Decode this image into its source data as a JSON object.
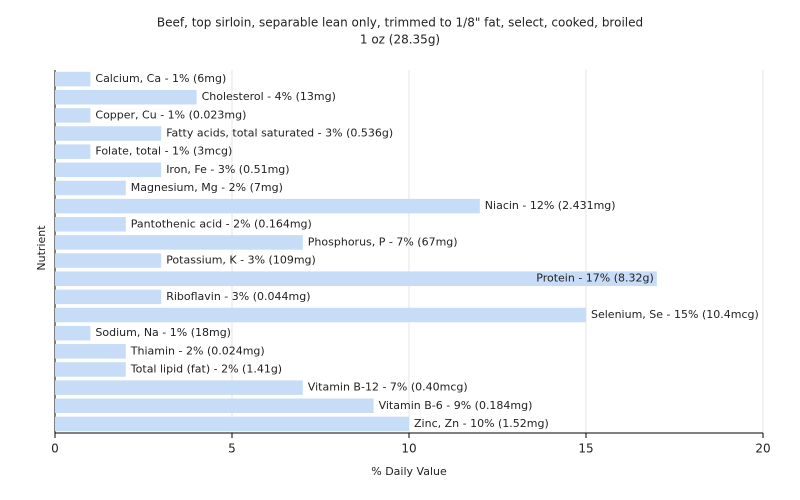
{
  "chart_data": {
    "type": "barh",
    "title": "Beef, top sirloin, separable lean only, trimmed to 1/8\" fat, select, cooked, broiled",
    "subtitle": "1 oz (28.35g)",
    "x_label": "% Daily Value",
    "y_label": "Nutrient",
    "values": [
      1,
      4,
      1,
      3,
      1,
      3,
      2,
      12,
      2,
      7,
      3,
      17,
      3,
      15,
      1,
      2,
      2,
      7,
      9,
      10
    ],
    "value_labels": [
      "Calcium, Ca - 1% (6mg)",
      "Cholesterol - 4% (13mg)",
      "Copper, Cu - 1% (0.023mg)",
      "Fatty acids, total saturated - 3% (0.536g)",
      "Folate, total - 1% (3mcg)",
      "Iron, Fe - 3% (0.51mg)",
      "Magnesium, Mg - 2% (7mg)",
      "Niacin - 12% (2.431mg)",
      "Pantothenic acid - 2% (0.164mg)",
      "Phosphorus, P - 7% (67mg)",
      "Potassium, K - 3% (109mg)",
      "Protein - 17% (8.32g)",
      "Riboflavin - 3% (0.044mg)",
      "Selenium, Se - 15% (10.4mcg)",
      "Sodium, Na - 1% (18mg)",
      "Thiamin - 2% (0.024mg)",
      "Total lipid (fat) - 2% (1.41g)",
      "Vitamin B-12 - 7% (0.40mcg)",
      "Vitamin B-6 - 9% (0.184mg)",
      "Zinc, Zn - 10% (1.52mg)"
    ],
    "color": "#c6dcf7",
    "xlim": [
      0,
      20
    ],
    "xticks": [
      0,
      5,
      10,
      15,
      20
    ],
    "grid": true
  }
}
